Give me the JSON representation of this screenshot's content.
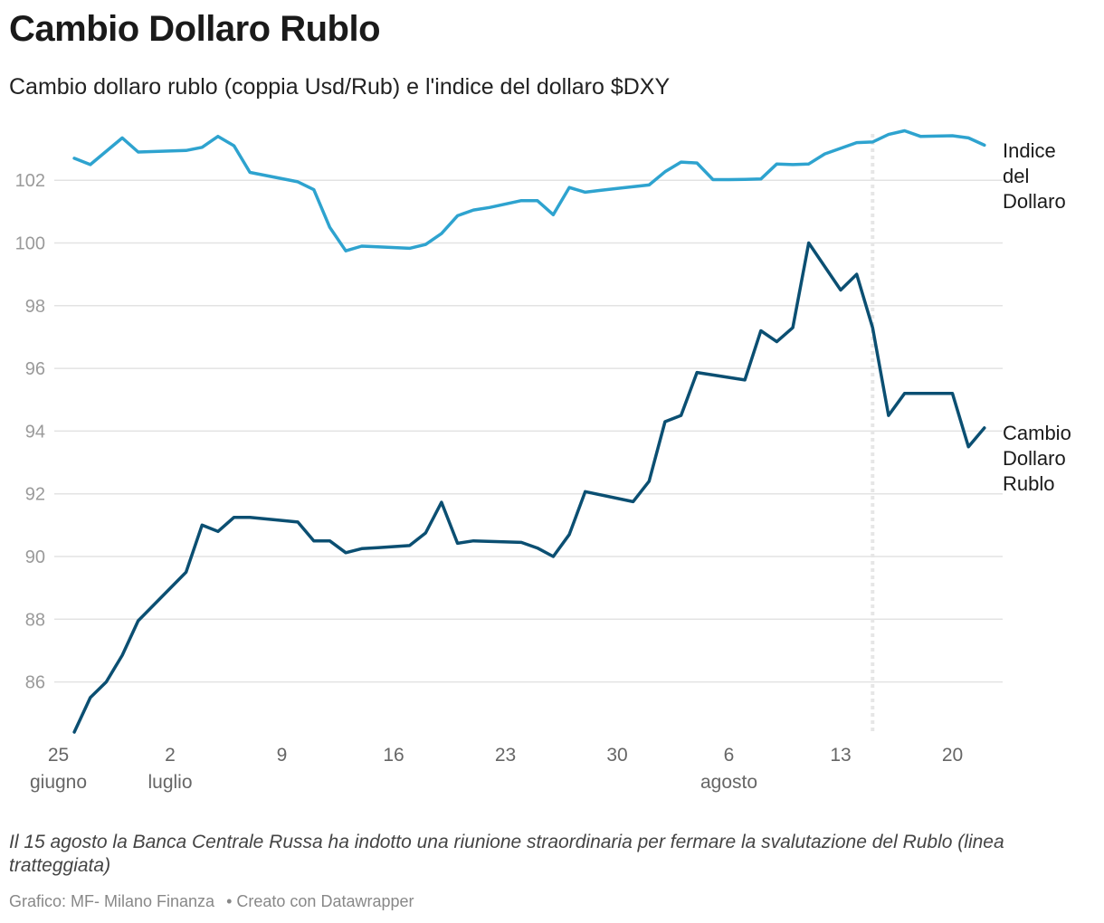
{
  "header": {
    "title": "Cambio Dollaro Rublo",
    "subtitle": "Cambio dollaro rublo (coppia Usd/Rub) e l'indice del dollaro $DXY"
  },
  "note": "Il 15 agosto la Banca Centrale Russa ha indotto una riunione straordinaria per fermare la svalutazione del Rublo (linea tratteggiata)",
  "footer": {
    "source": "Grafico: MF- Milano Finanza",
    "credit": "• Creato con Datawrapper"
  },
  "colors": {
    "dxy": "#2ea3cf",
    "rub": "#0b4f72",
    "grid": "#e3e3e3",
    "marker": "#e6e6e6"
  },
  "chart_data": {
    "type": "line",
    "title": "Cambio Dollaro Rublo",
    "xlabel": "",
    "ylabel": "",
    "x_unit": "days since 25 giugno 2023",
    "xlim": [
      0,
      59
    ],
    "ylim": [
      84,
      104
    ],
    "y_ticks": [
      86,
      88,
      90,
      92,
      94,
      96,
      98,
      100,
      102
    ],
    "x_ticks": [
      {
        "x": 0,
        "line1": "25",
        "line2": "giugno"
      },
      {
        "x": 7,
        "line1": "2",
        "line2": "luglio"
      },
      {
        "x": 14,
        "line1": "9",
        "line2": ""
      },
      {
        "x": 21,
        "line1": "16",
        "line2": ""
      },
      {
        "x": 28,
        "line1": "23",
        "line2": ""
      },
      {
        "x": 35,
        "line1": "30",
        "line2": ""
      },
      {
        "x": 42,
        "line1": "6",
        "line2": "agosto"
      },
      {
        "x": 49,
        "line1": "13",
        "line2": ""
      },
      {
        "x": 56,
        "line1": "20",
        "line2": ""
      }
    ],
    "marker_x": 51,
    "series": [
      {
        "name": "Indice del Dollaro",
        "label_lines": [
          "Indice",
          "del",
          "Dollaro"
        ],
        "color": "#2ea3cf",
        "x": [
          1,
          2,
          4,
          5,
          8,
          9,
          10,
          11,
          12,
          15,
          16,
          17,
          18,
          19,
          20,
          22,
          23,
          24,
          25,
          26,
          27,
          29,
          30,
          31,
          32,
          33,
          34,
          35,
          37,
          38,
          39,
          40,
          41,
          42,
          43,
          44,
          45,
          46,
          47,
          48,
          50,
          51,
          52,
          53,
          54,
          56,
          57,
          58
        ],
        "values": [
          102.7,
          102.5,
          103.35,
          102.9,
          102.95,
          103.05,
          103.4,
          103.1,
          102.25,
          101.95,
          101.7,
          100.5,
          99.75,
          99.9,
          99.88,
          99.83,
          99.95,
          100.3,
          100.87,
          101.05,
          101.13,
          101.35,
          101.35,
          100.9,
          101.77,
          101.62,
          101.68,
          101.74,
          101.85,
          102.27,
          102.58,
          102.55,
          102.02,
          102.02,
          102.03,
          102.04,
          102.52,
          102.5,
          102.52,
          102.84,
          103.2,
          103.22,
          103.46,
          103.58,
          103.4,
          103.42,
          103.35,
          103.12
        ]
      },
      {
        "name": "Cambio Dollaro Rublo",
        "label_lines": [
          "Cambio",
          "Dollaro",
          "Rublo"
        ],
        "color": "#0b4f72",
        "x": [
          1,
          2,
          3,
          4,
          5,
          8,
          9,
          10,
          11,
          12,
          15,
          16,
          17,
          18,
          19,
          20,
          22,
          23,
          24,
          25,
          26,
          29,
          30,
          31,
          32,
          33,
          36,
          37,
          38,
          39,
          40,
          43,
          44,
          45,
          46,
          47,
          49,
          50,
          51,
          52,
          53,
          54,
          56,
          57,
          58
        ],
        "values": [
          84.4,
          85.5,
          86.0,
          86.85,
          87.95,
          89.5,
          91.0,
          90.8,
          91.25,
          91.25,
          91.1,
          90.5,
          90.5,
          90.12,
          90.25,
          90.28,
          90.35,
          90.75,
          91.73,
          90.42,
          90.5,
          90.45,
          90.27,
          90.0,
          90.7,
          92.07,
          91.75,
          92.4,
          94.3,
          94.5,
          95.87,
          95.63,
          97.2,
          96.85,
          97.3,
          100.0,
          98.5,
          99.0,
          97.3,
          94.5,
          95.2,
          95.2,
          95.2,
          93.5,
          94.1
        ]
      }
    ]
  }
}
